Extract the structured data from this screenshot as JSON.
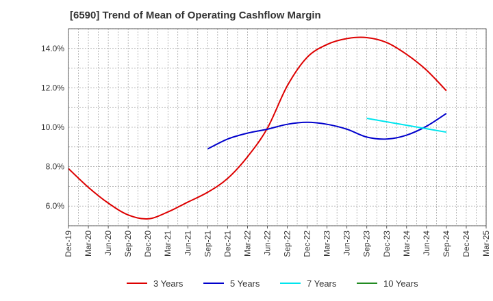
{
  "chart_data": {
    "type": "line",
    "title": "[6590]  Trend of Mean of Operating Cashflow Margin",
    "x_ticks": [
      "Dec-19",
      "Mar-20",
      "Jun-20",
      "Sep-20",
      "Dec-20",
      "Mar-21",
      "Jun-21",
      "Sep-21",
      "Dec-21",
      "Mar-22",
      "Jun-22",
      "Sep-22",
      "Dec-22",
      "Mar-23",
      "Jun-23",
      "Sep-23",
      "Dec-23",
      "Mar-24",
      "Jun-24",
      "Sep-24",
      "Dec-24",
      "Mar-25"
    ],
    "y_ticks": [
      "6.0%",
      "8.0%",
      "10.0%",
      "12.0%",
      "14.0%"
    ],
    "ylim": [
      5.0,
      15.0
    ],
    "y_unit": "%",
    "grid": true,
    "legend_position": "bottom",
    "series": [
      {
        "name": "3 Years",
        "color": "#dd0000",
        "x": [
          "Dec-19",
          "Mar-20",
          "Jun-20",
          "Sep-20",
          "Dec-20",
          "Mar-21",
          "Jun-21",
          "Sep-21",
          "Dec-21",
          "Mar-22",
          "Jun-22",
          "Sep-22",
          "Dec-22",
          "Mar-23",
          "Jun-23",
          "Sep-23",
          "Dec-23",
          "Mar-24",
          "Jun-24",
          "Sep-24"
        ],
        "values": [
          7.9,
          6.95,
          6.15,
          5.55,
          5.35,
          5.7,
          6.2,
          6.7,
          7.4,
          8.5,
          9.95,
          12.1,
          13.55,
          14.2,
          14.5,
          14.55,
          14.3,
          13.7,
          12.9,
          11.85
        ]
      },
      {
        "name": "5 Years",
        "color": "#0000cc",
        "x": [
          "Sep-21",
          "Dec-21",
          "Mar-22",
          "Jun-22",
          "Sep-22",
          "Dec-22",
          "Mar-23",
          "Jun-23",
          "Sep-23",
          "Dec-23",
          "Mar-24",
          "Jun-24",
          "Sep-24"
        ],
        "values": [
          8.9,
          9.4,
          9.7,
          9.9,
          10.15,
          10.25,
          10.15,
          9.9,
          9.5,
          9.4,
          9.6,
          10.05,
          10.7
        ]
      },
      {
        "name": "7 Years",
        "color": "#00e5ee",
        "x": [
          "Sep-23",
          "Sep-24"
        ],
        "values": [
          10.45,
          9.75
        ]
      },
      {
        "name": "10 Years",
        "color": "#228b22",
        "x": [],
        "values": []
      }
    ]
  }
}
